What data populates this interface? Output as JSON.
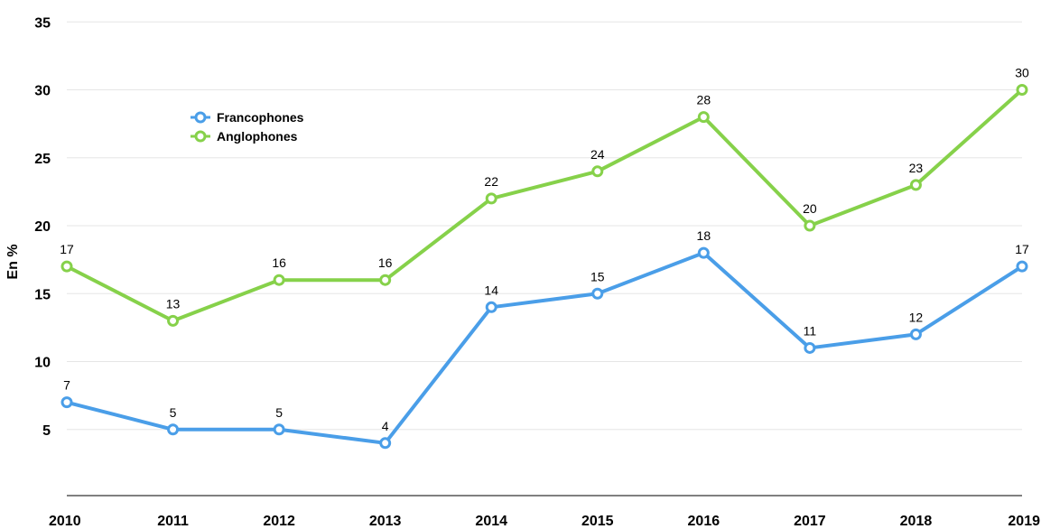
{
  "chart_data": {
    "type": "line",
    "ylabel": "En %",
    "xlabel": "",
    "categories": [
      "2010",
      "2011",
      "2012",
      "2013",
      "2014",
      "2015",
      "2016",
      "2017",
      "2018",
      "2019"
    ],
    "ylim": [
      0,
      35
    ],
    "yticks": [
      5,
      10,
      15,
      20,
      25,
      30,
      35
    ],
    "grid": true,
    "legend": "upper-left",
    "series": [
      {
        "name": "Francophones",
        "color": "#4a9ee8",
        "values": [
          7,
          5,
          5,
          4,
          14,
          15,
          18,
          11,
          12,
          17
        ]
      },
      {
        "name": "Anglophones",
        "color": "#86d14a",
        "values": [
          17,
          13,
          16,
          16,
          22,
          24,
          28,
          20,
          23,
          30
        ]
      }
    ]
  }
}
